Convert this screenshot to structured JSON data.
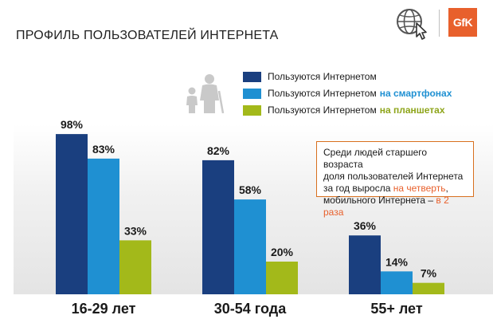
{
  "header": {
    "title": "ПРОФИЛЬ ПОЛЬЗОВАТЕЛЕЙ ИНТЕРНЕТА",
    "logo_text": "GfK",
    "icons": [
      "globe-cursor-icon",
      "people-family-icon"
    ]
  },
  "legend": [
    {
      "label": "Пользуются Интернетом",
      "suffix": "",
      "color": "#1a3f7f"
    },
    {
      "label": "Пользуются Интернетом",
      "suffix": "на смартфонах",
      "color": "#1f90d2",
      "suffix_color": "#1f90d2"
    },
    {
      "label": "Пользуются Интернетом",
      "suffix": "на планшетах",
      "color": "#a3b91a",
      "suffix_color": "#8ea51a"
    }
  ],
  "callout": {
    "line1": "Среди людей старшего возраста",
    "line2": "доля пользователей Интернета",
    "line3_a": "за год выросла ",
    "line3_b": "на четверть",
    "line3_c": ",",
    "line4_a": "мобильного Интернета – ",
    "line4_b": "в 2 раза"
  },
  "colors": {
    "internet": "#1a3f7f",
    "smartphone": "#1f90d2",
    "tablet": "#a3b91a",
    "accent_orange": "#e8602c"
  },
  "chart_data": {
    "type": "bar",
    "categories": [
      "16-29 лет",
      "30-54 года",
      "55+ лет"
    ],
    "series": [
      {
        "name": "Пользуются Интернетом",
        "values": [
          98,
          82,
          36
        ],
        "labels": [
          "98%",
          "82%",
          "36%"
        ]
      },
      {
        "name": "Пользуются Интернетом на смартфонах",
        "values": [
          83,
          58,
          14
        ],
        "labels": [
          "83%",
          "58%",
          "14%"
        ]
      },
      {
        "name": "Пользуются Интернетом на планшетах",
        "values": [
          33,
          20,
          7
        ],
        "labels": [
          "33%",
          "20%",
          "7%"
        ]
      }
    ],
    "title": "",
    "xlabel": "",
    "ylabel": "",
    "ylim": [
      0,
      100
    ],
    "grid": false,
    "legend_position": "top-right"
  }
}
